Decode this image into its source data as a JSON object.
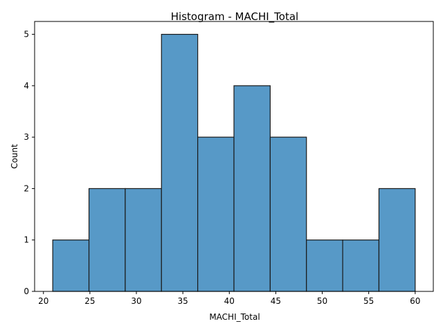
{
  "chart_data": {
    "type": "bar",
    "title": "Histogram - MACHI_Total",
    "xlabel": "MACHI_Total",
    "ylabel": "Count",
    "bin_edges": [
      21,
      24.9,
      28.8,
      32.7,
      36.6,
      40.5,
      44.4,
      48.3,
      52.2,
      56.1,
      60
    ],
    "values": [
      1,
      2,
      2,
      5,
      3,
      4,
      3,
      1,
      1,
      2
    ],
    "xlim": [
      19.05,
      61.95
    ],
    "ylim": [
      0,
      5.25
    ],
    "xticks": [
      20,
      25,
      30,
      35,
      40,
      45,
      50,
      55,
      60
    ],
    "yticks": [
      0,
      1,
      2,
      3,
      4,
      5
    ],
    "grid": false,
    "bar_color": "#5799c7",
    "edge_color": "#1a1a1a"
  }
}
